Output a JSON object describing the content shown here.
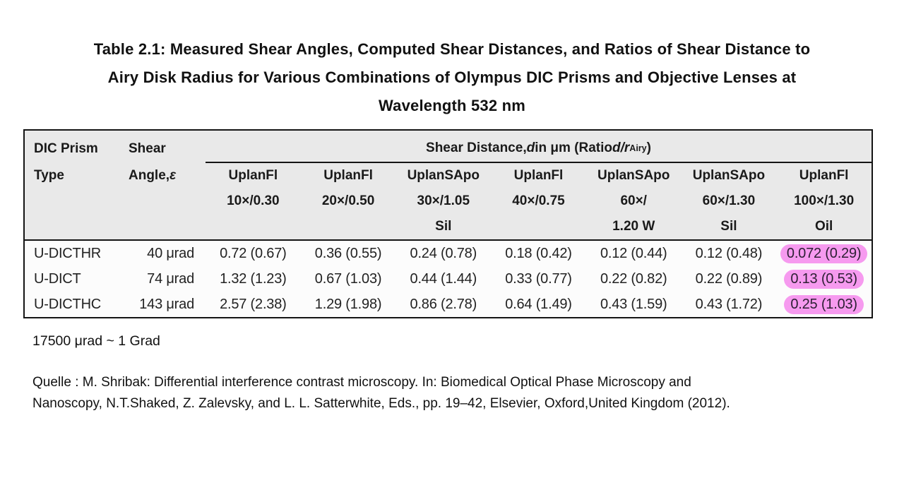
{
  "title": {
    "line1": "Table 2.1: Measured Shear Angles, Computed Shear Distances, and Ratios of Shear Distance to",
    "line2": "Airy Disk Radius for Various Combinations of Olympus DIC Prisms and Objective Lenses at",
    "line3": "Wavelength 532 nm"
  },
  "table": {
    "corner": {
      "col1_line1": "DIC Prism",
      "col1_line2": "Type",
      "col2_line1": "Shear",
      "col2_line2_prefix": "Angle, ",
      "col2_line2_symbol": "ε"
    },
    "span_header": {
      "part1": "Shear Distance, ",
      "d_italic": "d",
      "part2": " in μm (Ratio ",
      "dr_italic": "d/r",
      "subscript": "Airy",
      "part3": ")"
    },
    "objectives": [
      {
        "name": "UplanFl",
        "spec": "10×/0.30",
        "medium": ""
      },
      {
        "name": "UplanFl",
        "spec": "20×/0.50",
        "medium": ""
      },
      {
        "name": "UplanSApo",
        "spec": "30×/1.05",
        "medium": "Sil"
      },
      {
        "name": "UplanFl",
        "spec": "40×/0.75",
        "medium": ""
      },
      {
        "name": "UplanSApo",
        "spec": "60×/",
        "medium": "1.20 W"
      },
      {
        "name": "UplanSApo",
        "spec": "60×/1.30",
        "medium": "Sil"
      },
      {
        "name": "UplanFl",
        "spec": "100×/1.30",
        "medium": "Oil"
      }
    ],
    "rows": [
      {
        "prism": "U-DICTHR",
        "angle": "40 μrad",
        "values": [
          "0.72 (0.67)",
          "0.36 (0.55)",
          "0.24 (0.78)",
          "0.18 (0.42)",
          "0.12 (0.44)",
          "0.12 (0.48)",
          "0.072 (0.29)"
        ]
      },
      {
        "prism": "U-DICT",
        "angle": "74 μrad",
        "values": [
          "1.32 (1.23)",
          "0.67 (1.03)",
          "0.44 (1.44)",
          "0.33 (0.77)",
          "0.22 (0.82)",
          "0.22 (0.89)",
          "0.13 (0.53)"
        ]
      },
      {
        "prism": "U-DICTHC",
        "angle": "143 μrad",
        "values": [
          "2.57 (2.38)",
          "1.29 (1.98)",
          "0.86 (2.78)",
          "0.64 (1.49)",
          "0.43 (1.59)",
          "0.43 (1.72)",
          "0.25 (1.03)"
        ]
      }
    ]
  },
  "note": "17500 μrad ~ 1 Grad",
  "source": {
    "line1": "Quelle : M. Shribak: Differential interference contrast microscopy. In: Biomedical Optical Phase Microscopy and",
    "line2": "Nanoscopy, N.T.Shaked, Z. Zalevsky, and L. L. Satterwhite, Eds., pp. 19–42, Elsevier, Oxford,United Kingdom (2012)."
  },
  "colors": {
    "highlight_pink": "#f69aef",
    "header_background": "#e9e9e9",
    "table_border": "#141414"
  }
}
